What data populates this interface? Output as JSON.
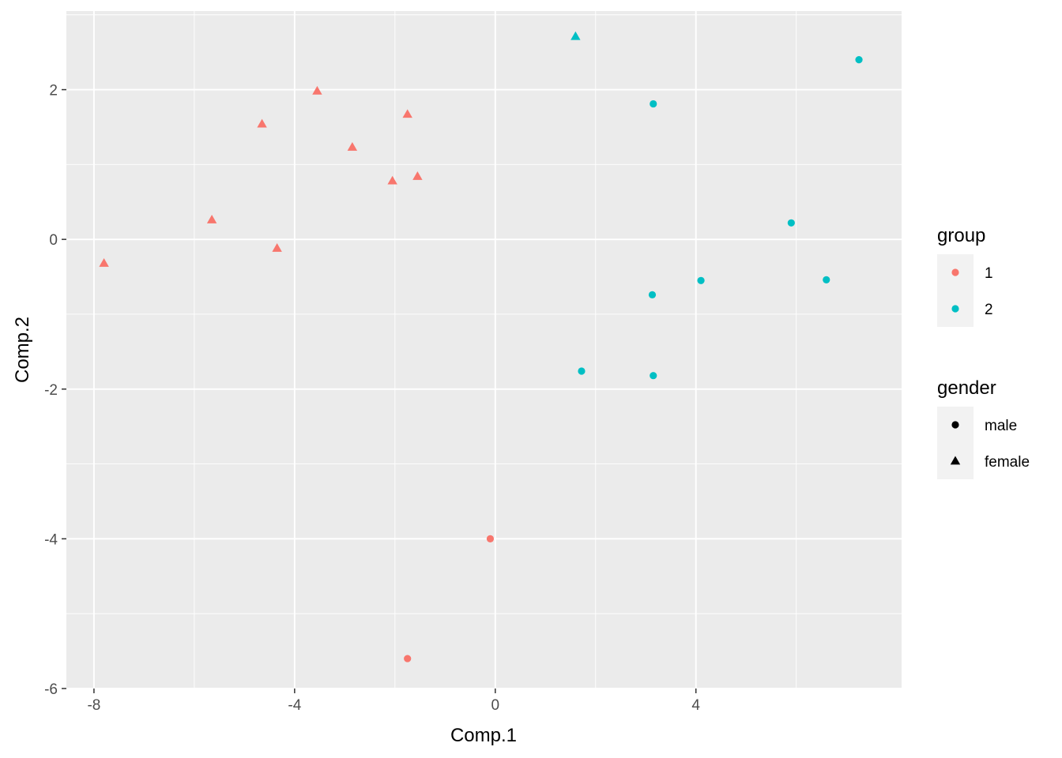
{
  "chart_data": {
    "type": "scatter",
    "title": "",
    "xlabel": "Comp.1",
    "ylabel": "Comp.2",
    "xlim": [
      -8.55,
      8.1
    ],
    "ylim": [
      -6.0,
      3.05
    ],
    "x_ticks": [
      -8,
      -4,
      0,
      4
    ],
    "y_ticks": [
      2,
      0,
      -2,
      -4,
      -6
    ],
    "x_tick_labels": [
      "-8",
      "-4",
      "0",
      "4"
    ],
    "y_tick_labels": [
      "2",
      "0",
      "-2",
      "-4",
      "-6"
    ],
    "grid": true,
    "legend_position": "right",
    "colors": {
      "1": "#F8766D",
      "2": "#00BFC4"
    },
    "legends": [
      {
        "title": "group",
        "entries": [
          {
            "label": "1",
            "key": "1"
          },
          {
            "label": "2",
            "key": "2"
          }
        ]
      },
      {
        "title": "gender",
        "entries": [
          {
            "label": "male",
            "key": "male"
          },
          {
            "label": "female",
            "key": "female"
          }
        ]
      }
    ],
    "points": [
      {
        "x": -7.8,
        "y": -0.32,
        "group": "1",
        "gender": "female"
      },
      {
        "x": -5.65,
        "y": 0.26,
        "group": "1",
        "gender": "female"
      },
      {
        "x": -4.65,
        "y": 1.54,
        "group": "1",
        "gender": "female"
      },
      {
        "x": -4.35,
        "y": -0.12,
        "group": "1",
        "gender": "female"
      },
      {
        "x": -3.55,
        "y": 1.98,
        "group": "1",
        "gender": "female"
      },
      {
        "x": -2.85,
        "y": 1.23,
        "group": "1",
        "gender": "female"
      },
      {
        "x": -2.05,
        "y": 0.78,
        "group": "1",
        "gender": "female"
      },
      {
        "x": -1.75,
        "y": 1.67,
        "group": "1",
        "gender": "female"
      },
      {
        "x": -1.55,
        "y": 0.84,
        "group": "1",
        "gender": "female"
      },
      {
        "x": -0.1,
        "y": -4.0,
        "group": "1",
        "gender": "male"
      },
      {
        "x": -1.75,
        "y": -5.6,
        "group": "1",
        "gender": "male"
      },
      {
        "x": 1.6,
        "y": 2.71,
        "group": "2",
        "gender": "female"
      },
      {
        "x": 3.15,
        "y": 1.81,
        "group": "2",
        "gender": "male"
      },
      {
        "x": 7.25,
        "y": 2.4,
        "group": "2",
        "gender": "male"
      },
      {
        "x": 5.9,
        "y": 0.22,
        "group": "2",
        "gender": "male"
      },
      {
        "x": 4.1,
        "y": -0.55,
        "group": "2",
        "gender": "male"
      },
      {
        "x": 6.6,
        "y": -0.54,
        "group": "2",
        "gender": "male"
      },
      {
        "x": 3.13,
        "y": -0.74,
        "group": "2",
        "gender": "male"
      },
      {
        "x": 1.72,
        "y": -1.76,
        "group": "2",
        "gender": "male"
      },
      {
        "x": 3.15,
        "y": -1.82,
        "group": "2",
        "gender": "male"
      }
    ]
  }
}
